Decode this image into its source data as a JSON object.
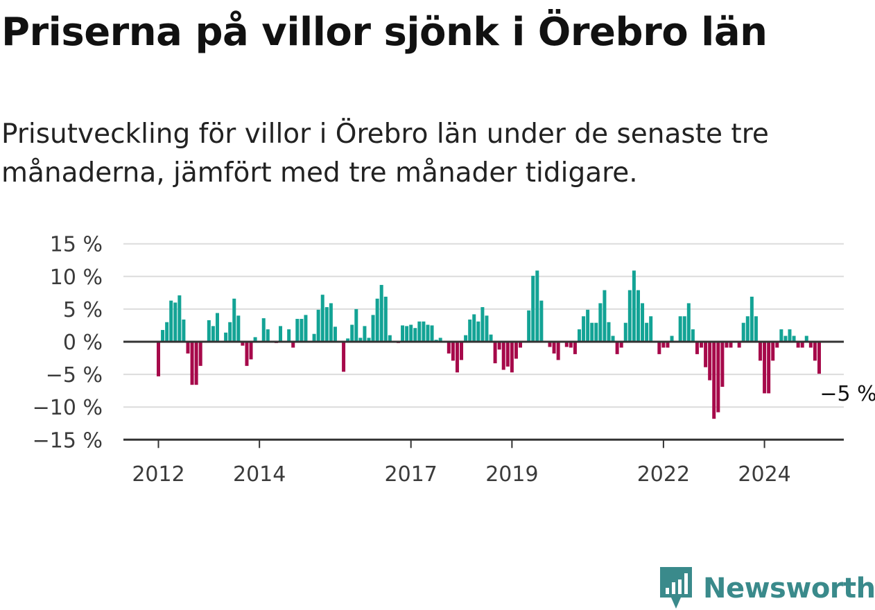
{
  "title": "Priserna på villor sjönk i Örebro län",
  "subtitle": "Prisutveckling för villor i Örebro län under de senaste tre månaderna, jämfört med tre månader tidigare.",
  "brand": "Newsworthy",
  "colors": {
    "positive": "#13a395",
    "negative": "#a6094a",
    "grid": "#dcdcdc",
    "axis": "#333333",
    "brand": "#3a8a8b"
  },
  "chart_data": {
    "type": "bar",
    "ylim": [
      -15,
      15
    ],
    "yticks": [
      15,
      10,
      5,
      0,
      -5,
      -10,
      -15
    ],
    "ytick_labels": [
      "15 %",
      "10 %",
      "5 %",
      "0 %",
      "−5 %",
      "−10 %",
      "−15 %"
    ],
    "xticks": [
      {
        "label": "2012",
        "index": 0
      },
      {
        "label": "2014",
        "index": 24
      },
      {
        "label": "2017",
        "index": 60
      },
      {
        "label": "2019",
        "index": 84
      },
      {
        "label": "2022",
        "index": 120
      },
      {
        "label": "2024",
        "index": 144
      }
    ],
    "start": "2012-01",
    "values": [
      -5.3,
      1.8,
      3.0,
      6.3,
      6.0,
      7.1,
      3.4,
      -1.8,
      -6.6,
      -6.6,
      -3.7,
      0.1,
      3.3,
      2.4,
      4.4,
      0.1,
      1.4,
      3.0,
      6.6,
      4.0,
      -0.6,
      -3.7,
      -2.7,
      0.7,
      0.1,
      3.6,
      1.9,
      0.1,
      -0.2,
      2.4,
      0.1,
      1.9,
      -0.9,
      3.5,
      3.5,
      4.1,
      0.1,
      1.2,
      4.9,
      7.2,
      5.3,
      5.9,
      2.3,
      0.1,
      -4.6,
      0.5,
      2.6,
      5.0,
      0.6,
      2.4,
      0.6,
      4.1,
      6.6,
      8.7,
      6.9,
      1.0,
      0.1,
      -0.2,
      2.5,
      2.4,
      2.6,
      2.1,
      3.1,
      3.1,
      2.6,
      2.5,
      0.3,
      0.6,
      0.1,
      -1.8,
      -2.9,
      -4.7,
      -2.8,
      1.0,
      3.4,
      4.2,
      3.1,
      5.3,
      4.0,
      1.1,
      -3.3,
      -1.2,
      -4.3,
      -3.8,
      -4.7,
      -2.6,
      -0.9,
      0.1,
      4.8,
      10.1,
      10.9,
      6.3,
      0.1,
      -0.8,
      -1.8,
      -2.8,
      0.1,
      -0.8,
      -0.9,
      -1.9,
      1.9,
      3.9,
      4.9,
      2.9,
      2.9,
      5.9,
      7.9,
      3.0,
      0.9,
      -1.9,
      -0.9,
      2.9,
      7.9,
      10.9,
      7.9,
      5.9,
      2.9,
      3.9,
      0.1,
      -1.9,
      -0.9,
      -0.9,
      0.9,
      0.1,
      3.9,
      3.9,
      5.9,
      1.9,
      -1.9,
      -0.9,
      -3.9,
      -5.9,
      -11.8,
      -10.8,
      -6.9,
      -0.9,
      -0.9,
      0.1,
      -0.9,
      2.9,
      3.9,
      6.9,
      3.9,
      -2.9,
      -7.9,
      -7.9,
      -2.9,
      -0.9,
      1.9,
      0.9,
      1.9,
      0.9,
      -0.9,
      -0.9,
      0.9,
      -0.9,
      -2.9,
      -4.9
    ],
    "last_label": "−5 %"
  }
}
